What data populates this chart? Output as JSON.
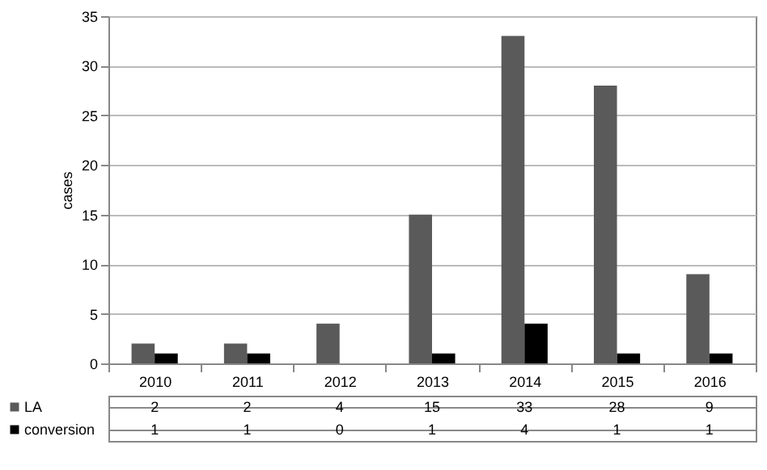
{
  "chart_data": {
    "type": "bar",
    "ylabel": "cases",
    "categories": [
      "2010",
      "2011",
      "2012",
      "2013",
      "2014",
      "2015",
      "2016"
    ],
    "series": [
      {
        "name": "LA",
        "color": "#5a5a5a",
        "values": [
          2,
          2,
          4,
          15,
          33,
          28,
          9
        ]
      },
      {
        "name": "conversion",
        "color": "#000000",
        "values": [
          1,
          1,
          0,
          1,
          4,
          1,
          1
        ]
      }
    ],
    "ylim": [
      0,
      35
    ],
    "yticks": [
      0,
      5,
      10,
      15,
      20,
      25,
      30,
      35
    ],
    "grid": "y",
    "data_labels": true,
    "legend": "bottom left"
  }
}
